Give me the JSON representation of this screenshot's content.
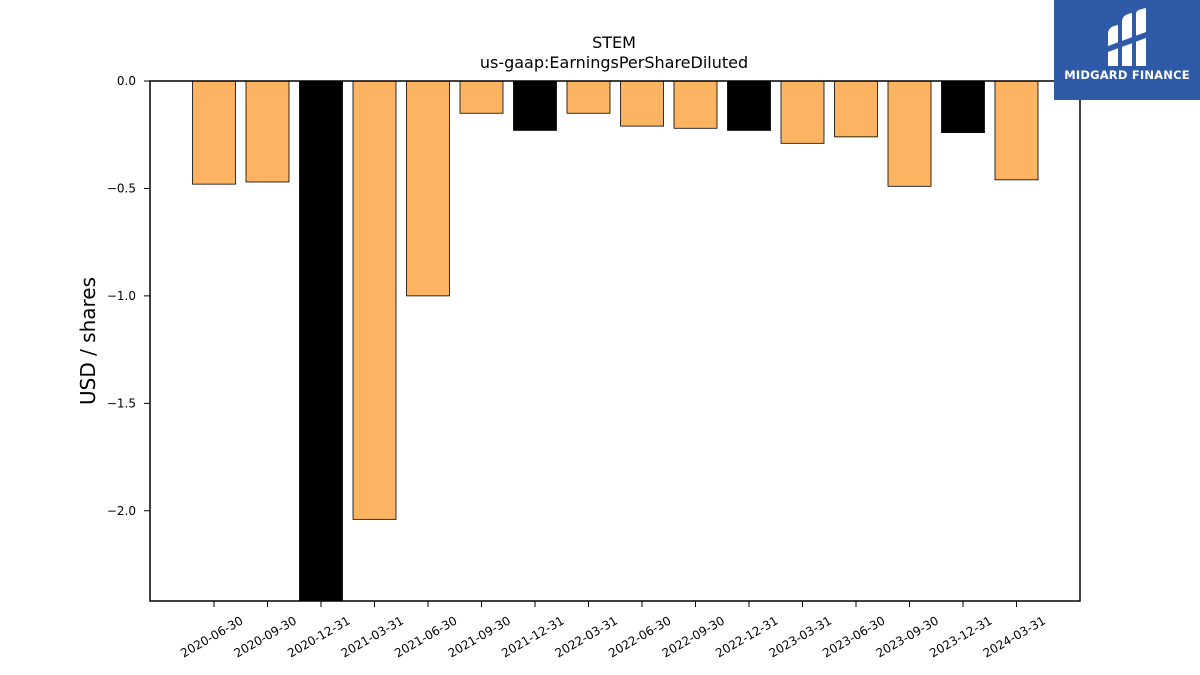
{
  "chart_data": {
    "type": "bar",
    "title": "STEM",
    "subtitle": "us-gaap:EarningsPerShareDiluted",
    "ylabel": "USD / shares",
    "xlabel": "",
    "categories": [
      "2020-06-30",
      "2020-09-30",
      "2020-12-31",
      "2021-03-31",
      "2021-06-30",
      "2021-09-30",
      "2021-12-31",
      "2022-03-31",
      "2022-06-30",
      "2022-09-30",
      "2022-12-31",
      "2023-03-31",
      "2023-06-30",
      "2023-09-30",
      "2023-12-31",
      "2024-03-31"
    ],
    "values": [
      -0.48,
      -0.47,
      -2.42,
      -2.04,
      -1.0,
      -0.15,
      -0.23,
      -0.15,
      -0.21,
      -0.22,
      -0.23,
      -0.29,
      -0.26,
      -0.49,
      -0.24,
      -0.46
    ],
    "bar_colors": [
      "#fdb462",
      "#fdb462",
      "#000000",
      "#fdb462",
      "#fdb462",
      "#fdb462",
      "#000000",
      "#fdb462",
      "#fdb462",
      "#fdb462",
      "#000000",
      "#fdb462",
      "#fdb462",
      "#fdb462",
      "#000000",
      "#fdb462"
    ],
    "ylim": [
      -2.42,
      0.0
    ],
    "yticks": [
      0.0,
      -0.5,
      -1.0,
      -1.5,
      -2.0
    ],
    "ytick_labels": [
      "0.0",
      "−0.5",
      "−1.0",
      "−1.5",
      "−2.0"
    ],
    "grid": false,
    "legend": "none"
  },
  "logo": {
    "text": "MIDGARD FINANCE",
    "background": "#2f5aa8",
    "icon": "midgard-logo-icon"
  }
}
